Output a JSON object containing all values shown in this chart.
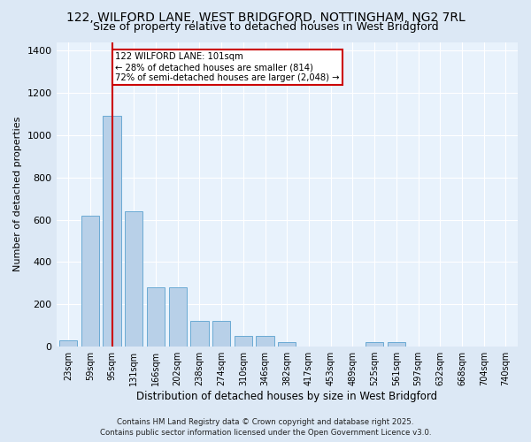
{
  "title1": "122, WILFORD LANE, WEST BRIDGFORD, NOTTINGHAM, NG2 7RL",
  "title2": "Size of property relative to detached houses in West Bridgford",
  "xlabel": "Distribution of detached houses by size in West Bridgford",
  "ylabel": "Number of detached properties",
  "categories": [
    "23sqm",
    "59sqm",
    "95sqm",
    "131sqm",
    "166sqm",
    "202sqm",
    "238sqm",
    "274sqm",
    "310sqm",
    "346sqm",
    "382sqm",
    "417sqm",
    "453sqm",
    "489sqm",
    "525sqm",
    "561sqm",
    "597sqm",
    "632sqm",
    "668sqm",
    "704sqm",
    "740sqm"
  ],
  "bar_heights": [
    30,
    620,
    1090,
    640,
    280,
    280,
    120,
    120,
    50,
    50,
    20,
    0,
    0,
    0,
    20,
    20,
    0,
    0,
    0,
    0,
    0
  ],
  "bar_color": "#b8d0e8",
  "bar_edgecolor": "#6aaad4",
  "ylim": [
    0,
    1440
  ],
  "yticks": [
    0,
    200,
    400,
    600,
    800,
    1000,
    1200,
    1400
  ],
  "property_line_x": 2,
  "property_line_color": "#cc0000",
  "annotation_title": "122 WILFORD LANE: 101sqm",
  "annotation_line1": "← 28% of detached houses are smaller (814)",
  "annotation_line2": "72% of semi-detached houses are larger (2,048) →",
  "annotation_box_color": "#cc0000",
  "footer1": "Contains HM Land Registry data © Crown copyright and database right 2025.",
  "footer2": "Contains public sector information licensed under the Open Government Licence v3.0.",
  "bg_color": "#dce8f5",
  "plot_bg_color": "#e8f2fc",
  "grid_color": "#ffffff",
  "title1_fontsize": 10,
  "title2_fontsize": 9
}
